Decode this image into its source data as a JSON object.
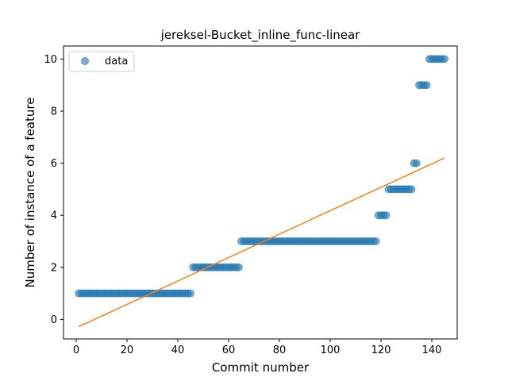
{
  "chart_data": {
    "type": "scatter",
    "title": "jereksel-Bucket_inline_func-linear",
    "xlabel": "Commit number",
    "ylabel": "Number of instance of a feature",
    "xlim": [
      -5,
      150
    ],
    "ylim": [
      -0.75,
      10.5
    ],
    "xticks": [
      0,
      20,
      40,
      60,
      80,
      100,
      120,
      140
    ],
    "yticks": [
      0,
      2,
      4,
      6,
      8,
      10
    ],
    "grid": false,
    "legend": {
      "placement": "top-left",
      "entries": [
        "data"
      ]
    },
    "series": [
      {
        "name": "data",
        "kind": "scatter",
        "color": "#1f77b4",
        "segments": [
          {
            "x_from": 1,
            "x_to": 45,
            "y": 1
          },
          {
            "x_from": 46,
            "x_to": 64,
            "y": 2
          },
          {
            "x_from": 65,
            "x_to": 118,
            "y": 3
          },
          {
            "x_from": 119,
            "x_to": 122,
            "y": 4
          },
          {
            "x_from": 123,
            "x_to": 132,
            "y": 5
          },
          {
            "x_from": 133,
            "x_to": 134,
            "y": 6
          },
          {
            "x_from": 135,
            "x_to": 138,
            "y": 9
          },
          {
            "x_from": 139,
            "x_to": 145,
            "y": 10
          }
        ]
      },
      {
        "name": "",
        "kind": "line",
        "color": "#ff7f0e",
        "x": [
          1,
          145
        ],
        "y": [
          -0.28,
          6.2
        ]
      }
    ]
  }
}
